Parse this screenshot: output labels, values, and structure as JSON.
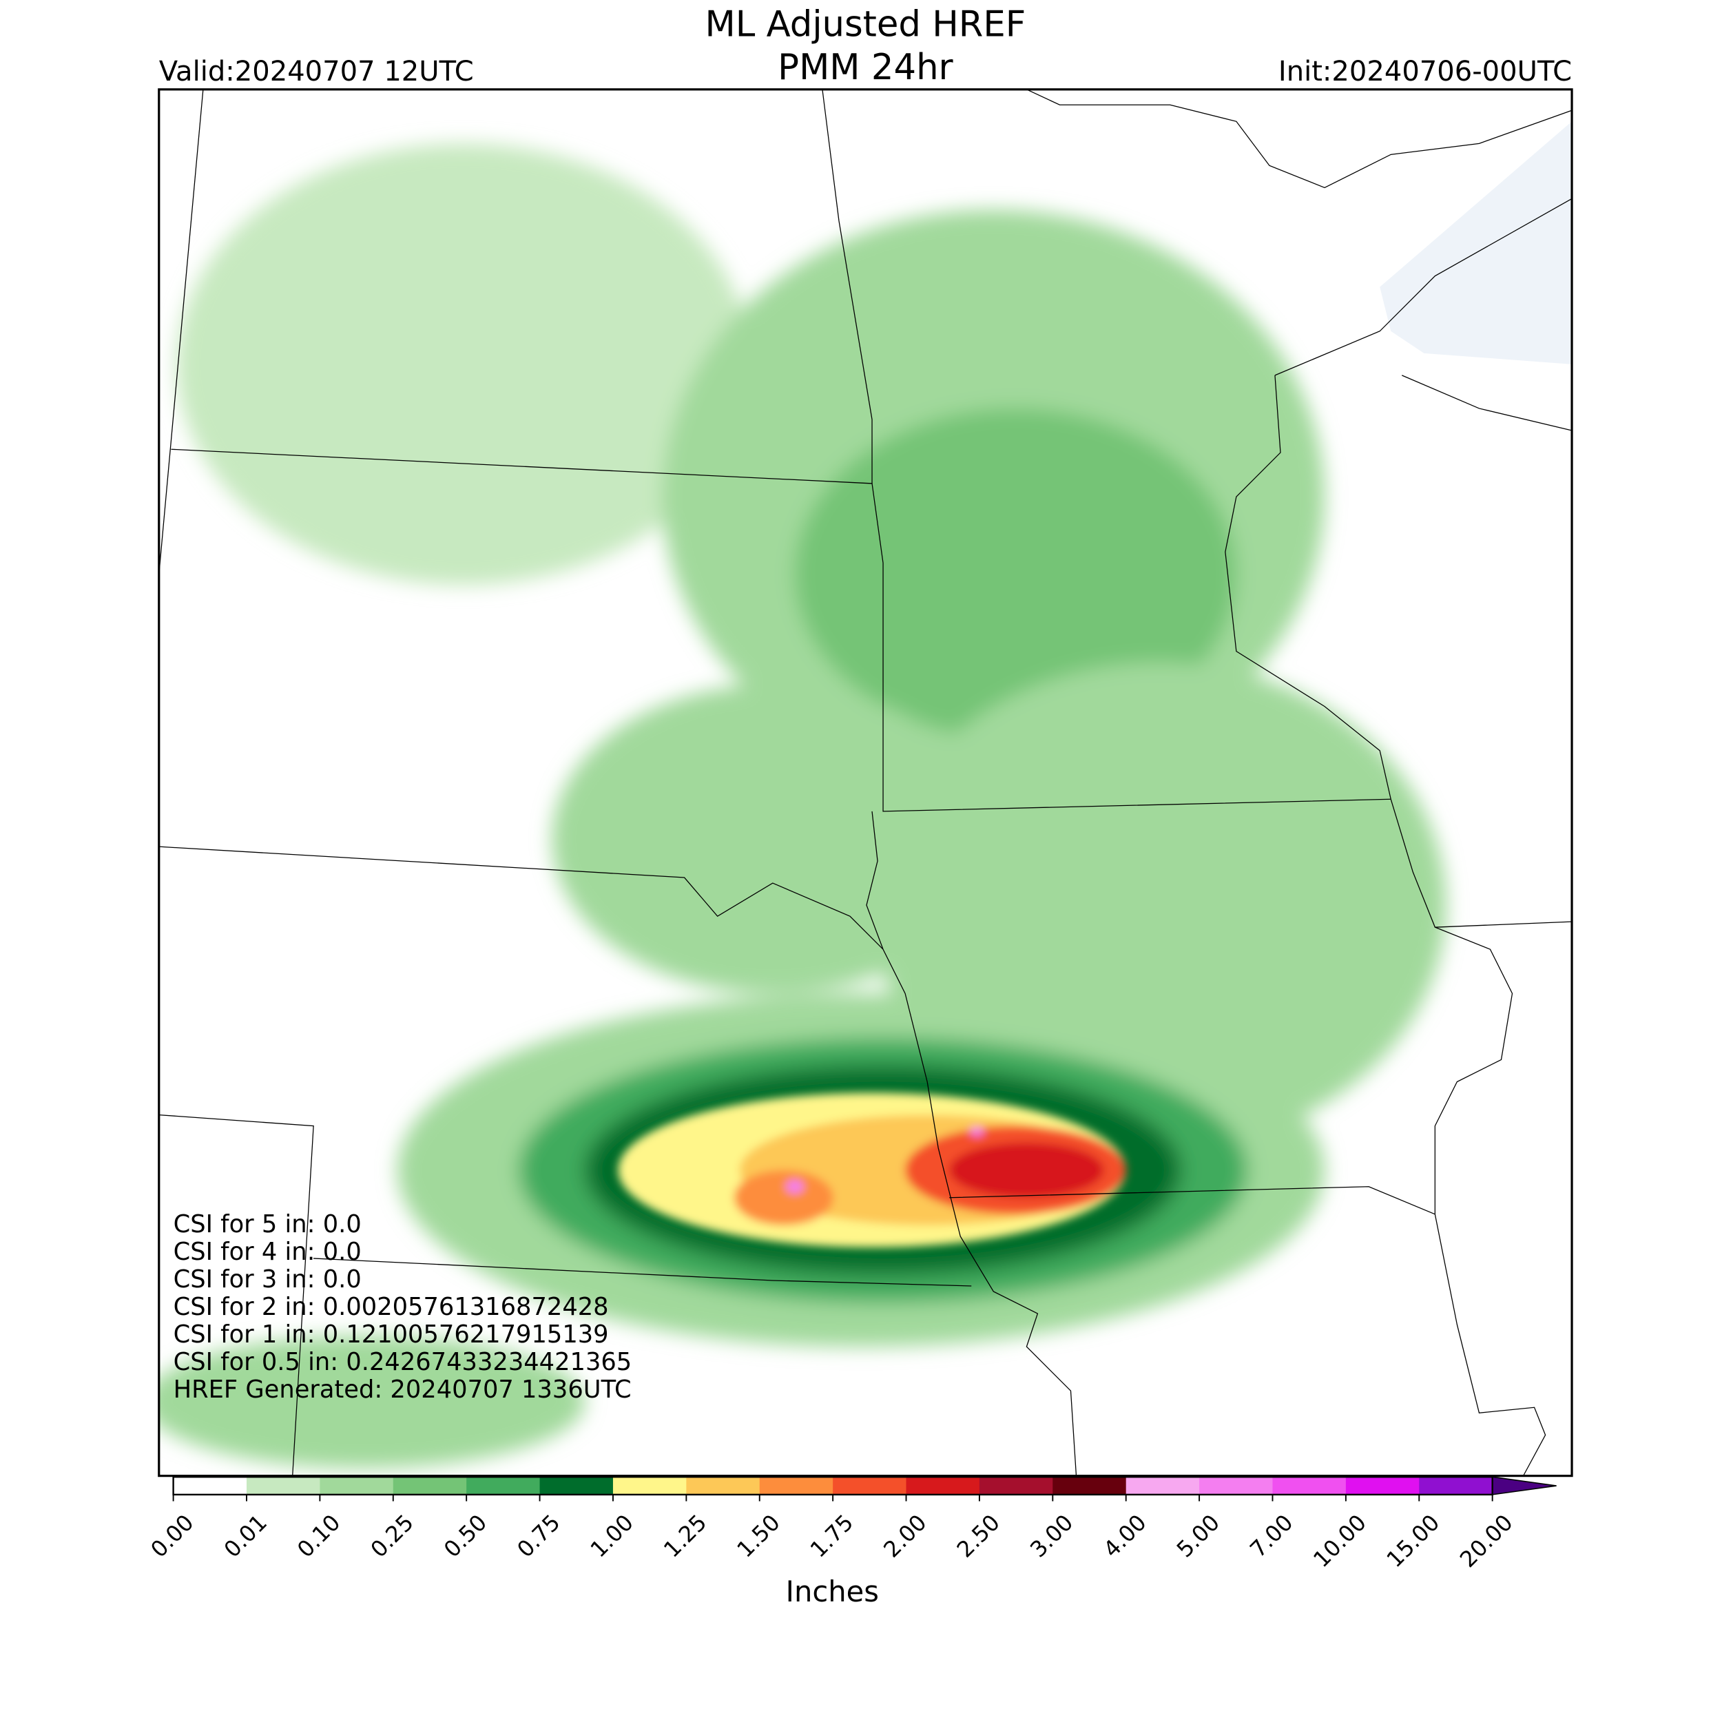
{
  "header": {
    "title": "ML Adjusted HREF",
    "subtitle": "PMM 24hr",
    "valid": "Valid:20240707 12UTC",
    "init": "Init:20240706-00UTC"
  },
  "colorbar": {
    "label": "Inches",
    "ticks": [
      "0.00",
      "0.01",
      "0.10",
      "0.25",
      "0.50",
      "0.75",
      "1.00",
      "1.25",
      "1.50",
      "1.75",
      "2.00",
      "2.50",
      "3.00",
      "4.00",
      "5.00",
      "7.00",
      "10.00",
      "15.00",
      "20.00"
    ],
    "colors": [
      "#ffffff",
      "#c7e9c0",
      "#a1d99b",
      "#74c476",
      "#41ab5d",
      "#006d2c",
      "#fff68a",
      "#fdc857",
      "#fd8d3c",
      "#f4502a",
      "#d7191c",
      "#a50f2d",
      "#67000d",
      "#f7a8f0",
      "#f47ef0",
      "#f050f0",
      "#e010f0",
      "#9010d0"
    ],
    "extend_color": "#4b0082"
  },
  "annotations": [
    "CSI for 5 in: 0.0",
    "CSI for 4 in: 0.0",
    "CSI for 3 in: 0.0",
    "CSI for 2 in: 0.00205761316872428",
    "CSI for 1 in: 0.12100576217915139",
    "CSI for 0.5 in: 0.24267433234421365",
    "HREF Generated: 20240707 1336UTC"
  ]
}
